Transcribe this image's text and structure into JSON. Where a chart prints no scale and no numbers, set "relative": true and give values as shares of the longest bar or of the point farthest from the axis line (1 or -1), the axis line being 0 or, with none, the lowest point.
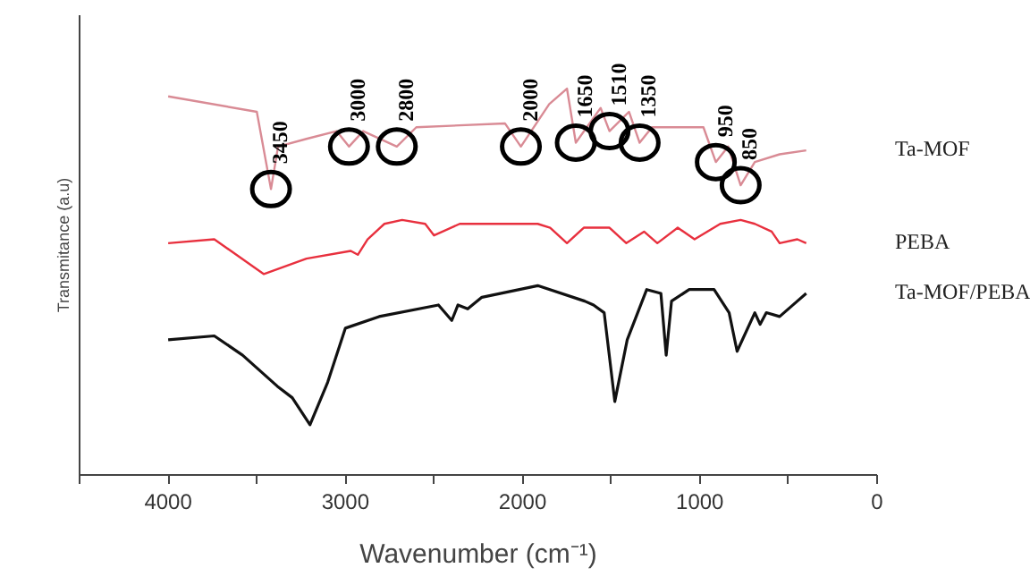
{
  "chart_data": {
    "type": "line",
    "relative": true,
    "xlabel": "Wavenumber (cm⁻¹)",
    "ylabel": "Transmitance (a.u)",
    "xlim": [
      4500,
      0
    ],
    "xticks": [
      {
        "value": 4500,
        "label": null
      },
      4000,
      {
        "value": 3500,
        "label": null
      },
      3000,
      {
        "value": 2500,
        "label": null
      },
      2000,
      {
        "value": 1500,
        "label": null
      },
      1000,
      {
        "value": 500,
        "label": null
      },
      0
    ],
    "legend": false,
    "grid": false,
    "series": [
      {
        "name": "Ta-MOF",
        "color": "#d98b95",
        "x": [
          4000,
          3500,
          3420,
          3380,
          3220,
          3050,
          2980,
          2900,
          2710,
          2600,
          2100,
          2010,
          1850,
          1750,
          1700,
          1560,
          1510,
          1400,
          1340,
          1270,
          980,
          910,
          840,
          770,
          690,
          550,
          400
        ],
        "values": [
          0.98,
          0.94,
          0.74,
          0.85,
          0.87,
          0.89,
          0.85,
          0.89,
          0.85,
          0.9,
          0.91,
          0.85,
          0.96,
          1.0,
          0.86,
          0.95,
          0.89,
          0.94,
          0.86,
          0.9,
          0.9,
          0.81,
          0.85,
          0.75,
          0.81,
          0.83,
          0.84
        ]
      },
      {
        "name": "PEBA",
        "color": "#e8303e",
        "x": [
          4000,
          3740,
          3460,
          3220,
          2970,
          2930,
          2875,
          2780,
          2680,
          2550,
          2500,
          2355,
          2105,
          1915,
          1845,
          1750,
          1655,
          1510,
          1415,
          1315,
          1240,
          1125,
          1030,
          885,
          770,
          690,
          595,
          550,
          450,
          400
        ],
        "values": [
          0.6,
          0.61,
          0.52,
          0.56,
          0.58,
          0.57,
          0.61,
          0.65,
          0.66,
          0.65,
          0.62,
          0.65,
          0.65,
          0.65,
          0.64,
          0.6,
          0.64,
          0.64,
          0.6,
          0.63,
          0.6,
          0.64,
          0.61,
          0.65,
          0.66,
          0.65,
          0.63,
          0.6,
          0.61,
          0.6
        ]
      },
      {
        "name": "Ta-MOF/PEBA",
        "color": "#111111",
        "x": [
          4000,
          3740,
          3580,
          3385,
          3300,
          3200,
          3100,
          3000,
          2810,
          2475,
          2400,
          2365,
          2310,
          2230,
          1915,
          1650,
          1600,
          1540,
          1480,
          1410,
          1300,
          1220,
          1190,
          1160,
          1060,
          920,
          835,
          790,
          690,
          660,
          625,
          550,
          450,
          400
        ],
        "values": [
          0.35,
          0.36,
          0.31,
          0.23,
          0.2,
          0.13,
          0.24,
          0.38,
          0.41,
          0.44,
          0.4,
          0.44,
          0.43,
          0.46,
          0.49,
          0.45,
          0.44,
          0.42,
          0.19,
          0.35,
          0.48,
          0.47,
          0.31,
          0.45,
          0.48,
          0.48,
          0.42,
          0.32,
          0.42,
          0.39,
          0.42,
          0.41,
          0.45,
          0.47
        ]
      }
    ],
    "annotations": [
      {
        "text": "3450",
        "x": 3420,
        "y": 0.74
      },
      {
        "text": "3000",
        "x": 2980,
        "y": 0.85
      },
      {
        "text": "2800",
        "x": 2710,
        "y": 0.85
      },
      {
        "text": "2000",
        "x": 2010,
        "y": 0.85
      },
      {
        "text": "1650",
        "x": 1700,
        "y": 0.86
      },
      {
        "text": "1510",
        "x": 1510,
        "y": 0.89
      },
      {
        "text": "1350",
        "x": 1340,
        "y": 0.86
      },
      {
        "text": "950",
        "x": 910,
        "y": 0.81
      },
      {
        "text": "850",
        "x": 770,
        "y": 0.75
      }
    ]
  }
}
